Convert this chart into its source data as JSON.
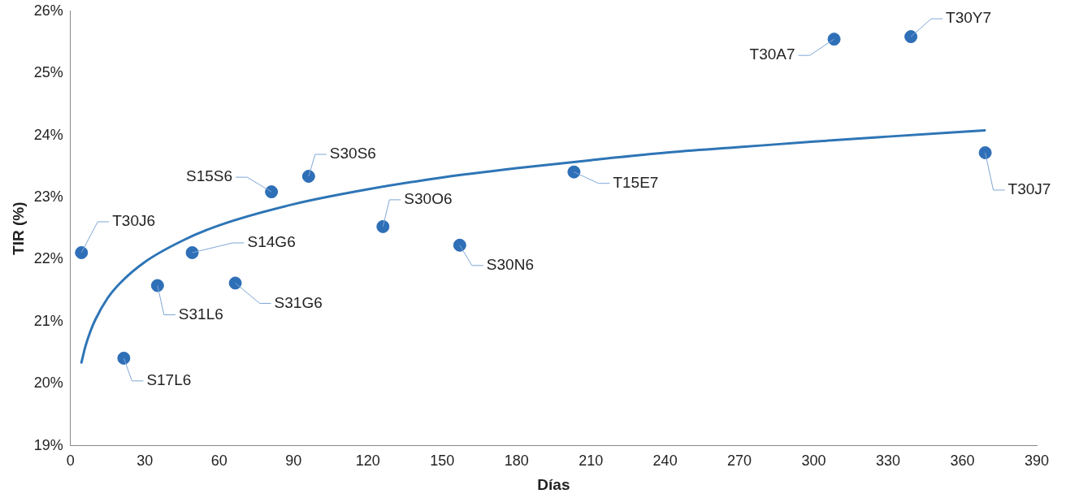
{
  "chart_data": {
    "type": "scatter",
    "xlabel": "Días",
    "ylabel": "TIR (%)",
    "xlim": [
      0,
      390
    ],
    "xticks": [
      0,
      30,
      60,
      90,
      120,
      150,
      180,
      210,
      240,
      270,
      300,
      330,
      360,
      390
    ],
    "ylim": [
      19,
      26
    ],
    "yticks": [
      {
        "value": 19,
        "label": "19%"
      },
      {
        "value": 20,
        "label": "20%"
      },
      {
        "value": 21,
        "label": "21%"
      },
      {
        "value": 22,
        "label": "22%"
      },
      {
        "value": 23,
        "label": "23%"
      },
      {
        "value": 24,
        "label": "24%"
      },
      {
        "value": 25,
        "label": "25%"
      },
      {
        "value": 26,
        "label": "26%"
      }
    ],
    "grid": false,
    "legend": false,
    "series": [
      {
        "color": "#2e6fb7",
        "marker": "circle",
        "x": [
          4.4,
          21.5,
          35.1,
          49.1,
          66.5,
          81.1,
          96.1,
          126.1,
          157.1,
          203.2,
          308.2,
          339.2,
          369.2
        ],
        "values": [
          22.11,
          20.41,
          21.58,
          22.11,
          21.62,
          23.09,
          23.34,
          22.53,
          22.23,
          23.41,
          25.55,
          25.59,
          23.72
        ]
      },
      {
        "type": "line",
        "color": "#2e75b6",
        "marker": "none",
        "line_style": "solid",
        "x": [
          4.4,
          6,
          8,
          10,
          15,
          20,
          30,
          45,
          60,
          90,
          120,
          150,
          180,
          210,
          240,
          270,
          300,
          330,
          369
        ],
        "values": [
          20.34,
          20.6,
          20.84,
          21.03,
          21.38,
          21.62,
          21.96,
          22.3,
          22.55,
          22.89,
          23.13,
          23.32,
          23.47,
          23.6,
          23.72,
          23.81,
          23.9,
          23.98,
          24.08
        ]
      }
    ],
    "annotations": [
      {
        "text": "T30J6",
        "x": 4.4,
        "y": 22.11
      },
      {
        "text": "S17L6",
        "x": 21.5,
        "y": 20.41
      },
      {
        "text": "S31L6",
        "x": 35.1,
        "y": 21.58
      },
      {
        "text": "S14G6",
        "x": 49.1,
        "y": 22.11
      },
      {
        "text": "S31G6",
        "x": 66.5,
        "y": 21.62
      },
      {
        "text": "S15S6",
        "x": 81.1,
        "y": 23.09
      },
      {
        "text": "S30S6",
        "x": 96.1,
        "y": 23.34
      },
      {
        "text": "S30O6",
        "x": 126.1,
        "y": 22.53
      },
      {
        "text": "S30N6",
        "x": 157.1,
        "y": 22.23
      },
      {
        "text": "T15E7",
        "x": 203.2,
        "y": 23.41
      },
      {
        "text": "T30A7",
        "x": 308.2,
        "y": 25.55
      },
      {
        "text": "T30Y7",
        "x": 339.2,
        "y": 25.59
      },
      {
        "text": "T30J7",
        "x": 369.2,
        "y": 23.72
      }
    ]
  }
}
